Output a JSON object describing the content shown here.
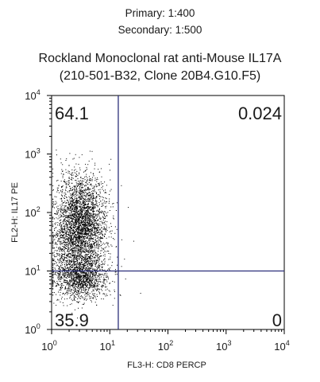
{
  "header": {
    "primary": "Primary: 1:400",
    "secondary": "Secondary: 1:500"
  },
  "title_line1": "Rockland Monoclonal rat anti-Mouse IL17A",
  "title_line2": "(210-501-B32, Clone 20B4.G10.F5)",
  "chart_data": {
    "type": "scatter",
    "title": "Rockland Monoclonal rat anti-Mouse IL17A (210-501-B32, Clone 20B4.G10.F5)",
    "xlabel": "FL3-H: CD8 PERCP",
    "ylabel": "FL2-H: IL17 PE",
    "x_scale": "log",
    "y_scale": "log",
    "xlim": [
      1,
      10000
    ],
    "ylim": [
      1,
      10000
    ],
    "x_ticks": [
      {
        "base": "10",
        "exp": "0"
      },
      {
        "base": "10",
        "exp": "1"
      },
      {
        "base": "10",
        "exp": "2"
      },
      {
        "base": "10",
        "exp": "3"
      },
      {
        "base": "10",
        "exp": "4"
      }
    ],
    "y_ticks": [
      {
        "base": "10",
        "exp": "0"
      },
      {
        "base": "10",
        "exp": "1"
      },
      {
        "base": "10",
        "exp": "2"
      },
      {
        "base": "10",
        "exp": "3"
      },
      {
        "base": "10",
        "exp": "4"
      }
    ],
    "gate": {
      "x": 14,
      "y": 10
    },
    "quadrants": {
      "upper_left": "64.1",
      "upper_right": "0.024",
      "lower_left": "35.9",
      "lower_right": "0"
    },
    "clusters": [
      {
        "x_center": 3.2,
        "y_center": 80,
        "x_spread_decades": 0.22,
        "y_spread_decades": 0.38,
        "count": 2600
      },
      {
        "x_center": 3.0,
        "y_center": 8,
        "x_spread_decades": 0.24,
        "y_spread_decades": 0.2,
        "count": 1500
      },
      {
        "x_center": 2.5,
        "y_center": 25,
        "x_spread_decades": 0.22,
        "y_spread_decades": 0.25,
        "count": 700
      }
    ],
    "grid": false,
    "point_color": "#000000",
    "gate_color": "#2b2f7a"
  }
}
